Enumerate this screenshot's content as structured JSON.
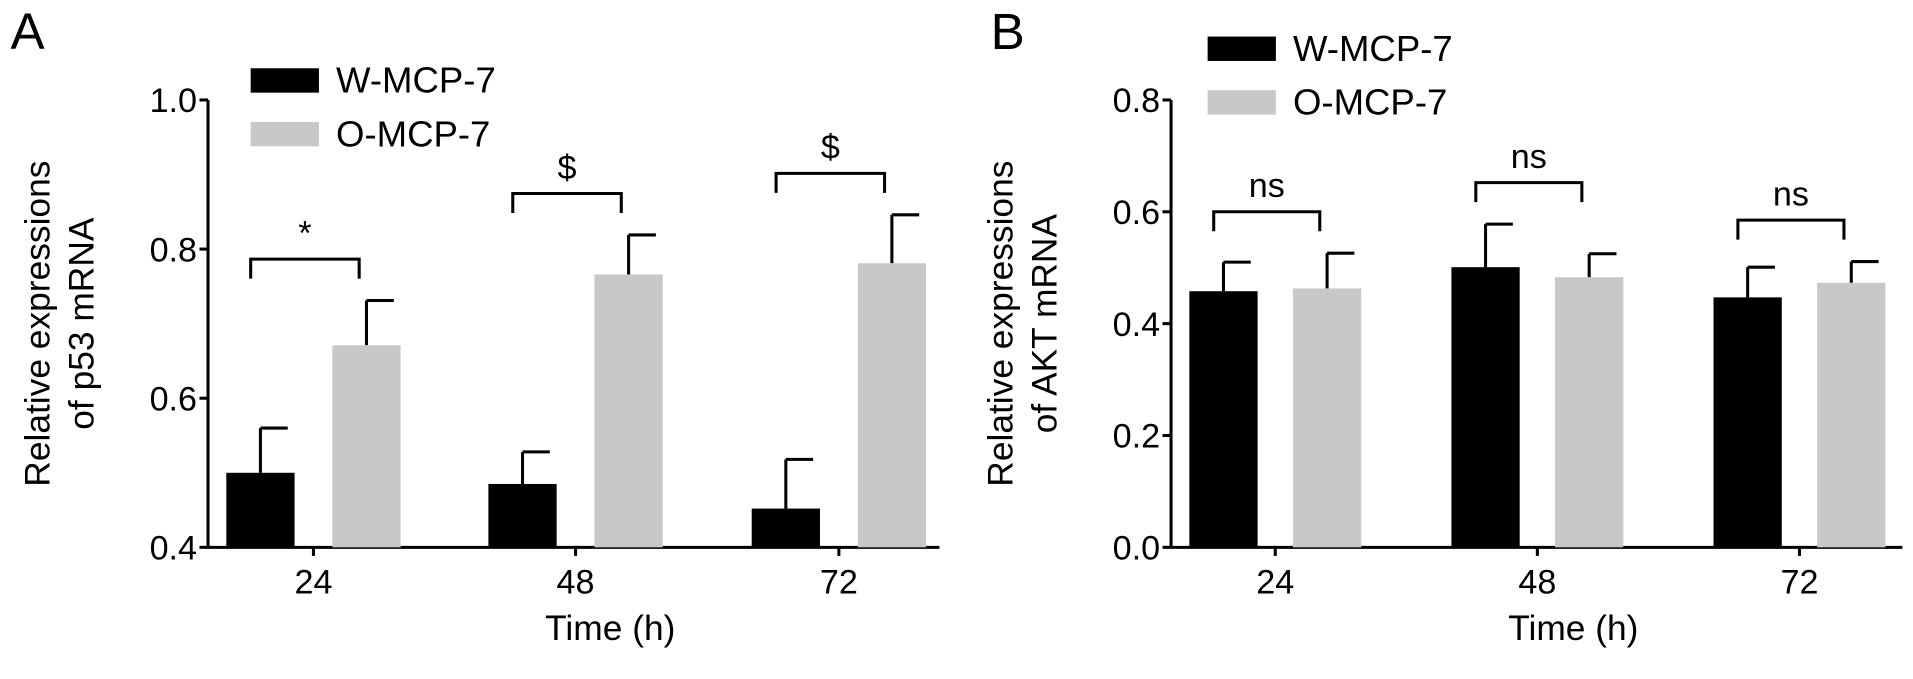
{
  "chart_data": [
    {
      "panel_label": "A",
      "type": "bar",
      "title": "",
      "xlabel": "Time (h)",
      "ylabel_lines": [
        "Relative expressions",
        "of p53 mRNA"
      ],
      "categories": [
        "24",
        "48",
        "72"
      ],
      "ylim": [
        0.4,
        1.0
      ],
      "yticks": [
        "0.4",
        "0.6",
        "0.8",
        "1.0"
      ],
      "ytick_values": [
        0.4,
        0.6,
        0.8,
        1.0
      ],
      "grid": false,
      "legend_position": "top-left",
      "series": [
        {
          "name": "W-MCP-7",
          "color": "#000000",
          "values": [
            0.5,
            0.485,
            0.452
          ],
          "error": [
            0.06,
            0.043,
            0.066
          ]
        },
        {
          "name": "O-MCP-7",
          "color": "#c8c8c8",
          "values": [
            0.671,
            0.766,
            0.781
          ],
          "error": [
            0.06,
            0.053,
            0.065
          ]
        }
      ],
      "annotations": [
        "*",
        "$",
        "$"
      ]
    },
    {
      "panel_label": "B",
      "type": "bar",
      "title": "",
      "xlabel": "Time (h)",
      "ylabel_lines": [
        "Relative expressions",
        "of AKT mRNA"
      ],
      "categories": [
        "24",
        "48",
        "72"
      ],
      "ylim": [
        0.0,
        0.8
      ],
      "yticks": [
        "0.0",
        "0.2",
        "0.4",
        "0.6",
        "0.8"
      ],
      "ytick_values": [
        0.0,
        0.2,
        0.4,
        0.6,
        0.8
      ],
      "grid": false,
      "legend_position": "top-left",
      "series": [
        {
          "name": "W-MCP-7",
          "color": "#000000",
          "values": [
            0.458,
            0.501,
            0.447
          ],
          "error": [
            0.052,
            0.077,
            0.054
          ]
        },
        {
          "name": "O-MCP-7",
          "color": "#c8c8c8",
          "values": [
            0.463,
            0.483,
            0.473
          ],
          "error": [
            0.063,
            0.042,
            0.038
          ]
        }
      ],
      "annotations": [
        "ns",
        "ns",
        "ns"
      ]
    }
  ]
}
